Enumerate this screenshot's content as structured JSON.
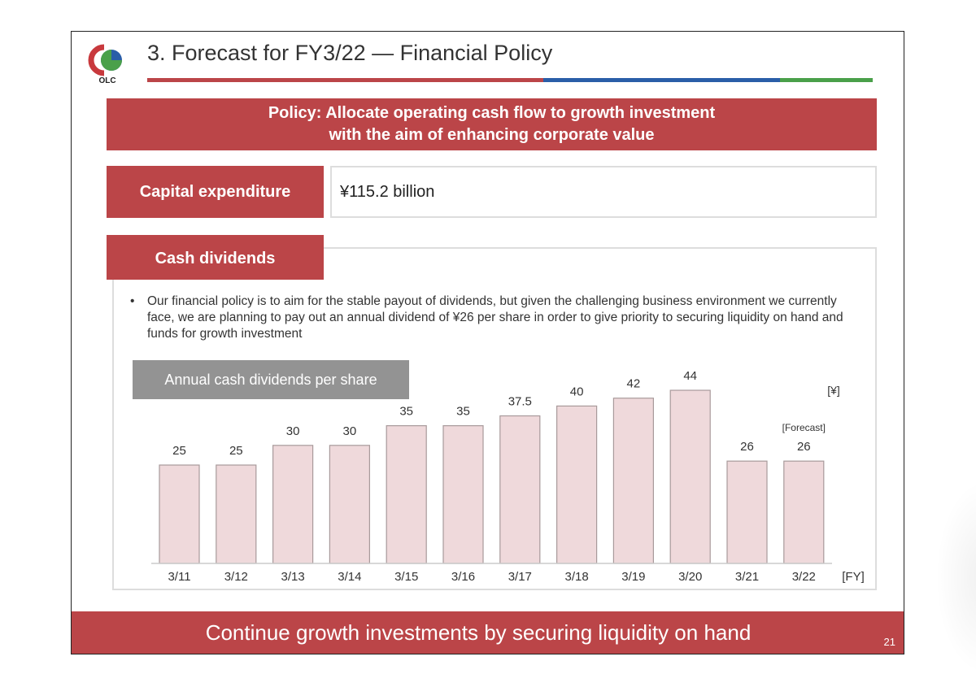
{
  "header": {
    "logo_text": "OLC",
    "title": "3. Forecast for FY3/22 — Financial Policy",
    "rule_colors": [
      "#bb4548",
      "#2a5ea8",
      "#4aa04a"
    ]
  },
  "policy": {
    "line1": "Policy: Allocate operating cash flow to growth investment",
    "line2": "with the aim of enhancing corporate value"
  },
  "capex": {
    "label": "Capital expenditure",
    "value": "¥115.2 billion"
  },
  "dividends": {
    "label": "Cash dividends",
    "bullet": "Our financial policy is to aim for the stable payout of dividends, but given the challenging business environment we currently face, we are planning to pay out an annual dividend of ¥26 per share in order to give priority to securing liquidity on hand and funds for growth investment"
  },
  "chart_data": {
    "type": "bar",
    "title": "Annual cash dividends per share",
    "ylabel": "[¥]",
    "xlabel": "[FY]",
    "categories": [
      "3/11",
      "3/12",
      "3/13",
      "3/14",
      "3/15",
      "3/16",
      "3/17",
      "3/18",
      "3/19",
      "3/20",
      "3/21",
      "3/22"
    ],
    "values": [
      25,
      25,
      30,
      30,
      35,
      35,
      37.5,
      40,
      42,
      44,
      26,
      26
    ],
    "value_labels": [
      "25",
      "25",
      "30",
      "30",
      "35",
      "35",
      "37.5",
      "40",
      "42",
      "44",
      "26",
      "26"
    ],
    "annotation": "[Forecast]",
    "annotation_category": "3/22",
    "ylim": [
      0,
      50
    ],
    "grid": false,
    "bar_fill": "#efd9db",
    "bar_stroke": "#a89a9b"
  },
  "footer": {
    "message": "Continue growth investments by securing liquidity on hand",
    "page_number": "21"
  }
}
